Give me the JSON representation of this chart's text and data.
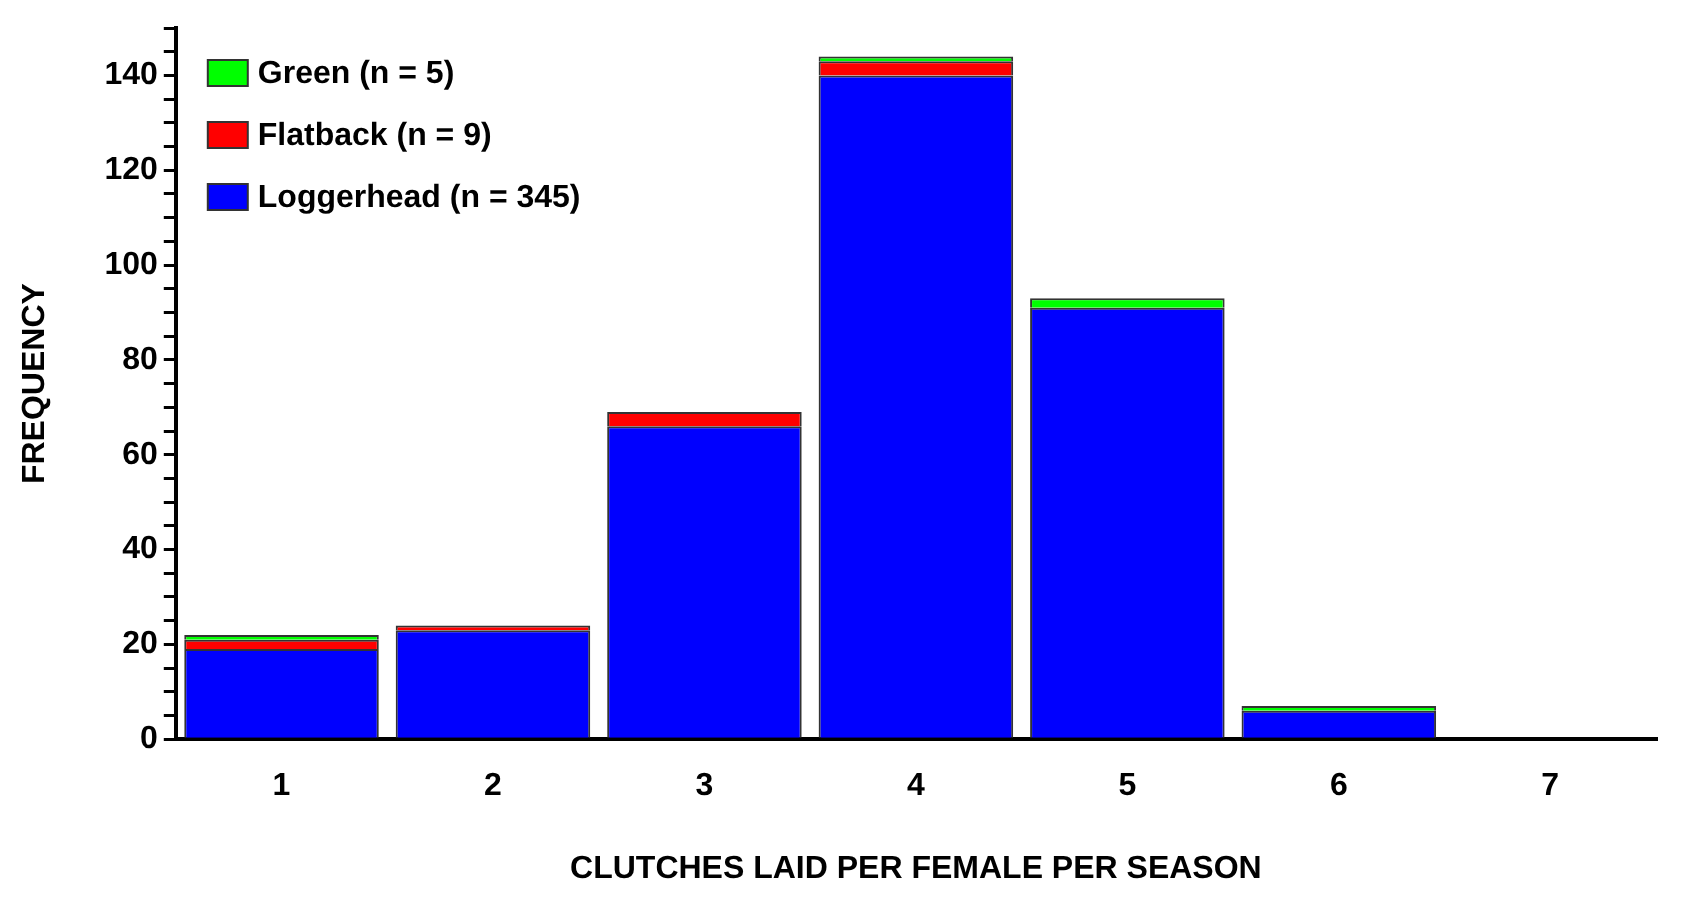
{
  "chart_data": {
    "type": "bar",
    "stacked": true,
    "xlabel": "CLUTCHES LAID PER FEMALE PER SEASON",
    "ylabel": "FREQUENCY",
    "categories": [
      "1",
      "2",
      "3",
      "4",
      "5",
      "6",
      "7"
    ],
    "series": [
      {
        "name": "Loggerhead (n = 345)",
        "color": "#0000ff",
        "values": [
          19,
          23,
          66,
          140,
          91,
          6,
          0
        ]
      },
      {
        "name": "Flatback (n = 9)",
        "color": "#ff0000",
        "values": [
          2,
          1,
          3,
          3,
          0,
          0,
          0
        ]
      },
      {
        "name": "Green (n = 5)",
        "color": "#00ff00",
        "values": [
          1,
          0,
          0,
          1,
          2,
          1,
          0
        ]
      }
    ],
    "ylim": [
      0,
      150
    ],
    "yticks": [
      0,
      {
        "value": 5,
        "label": null
      },
      {
        "value": 10,
        "label": null
      },
      {
        "value": 15,
        "label": null
      },
      20,
      {
        "value": 25,
        "label": null
      },
      {
        "value": 30,
        "label": null
      },
      {
        "value": 35,
        "label": null
      },
      40,
      {
        "value": 45,
        "label": null
      },
      {
        "value": 50,
        "label": null
      },
      {
        "value": 55,
        "label": null
      },
      60,
      {
        "value": 65,
        "label": null
      },
      {
        "value": 70,
        "label": null
      },
      {
        "value": 75,
        "label": null
      },
      80,
      {
        "value": 85,
        "label": null
      },
      {
        "value": 90,
        "label": null
      },
      {
        "value": 95,
        "label": null
      },
      100,
      {
        "value": 105,
        "label": null
      },
      {
        "value": 110,
        "label": null
      },
      {
        "value": 115,
        "label": null
      },
      120,
      {
        "value": 125,
        "label": null
      },
      {
        "value": 130,
        "label": null
      },
      {
        "value": 135,
        "label": null
      },
      140,
      {
        "value": 145,
        "label": null
      },
      {
        "value": 150,
        "label": null
      }
    ],
    "grid": false,
    "legend": "top left"
  }
}
